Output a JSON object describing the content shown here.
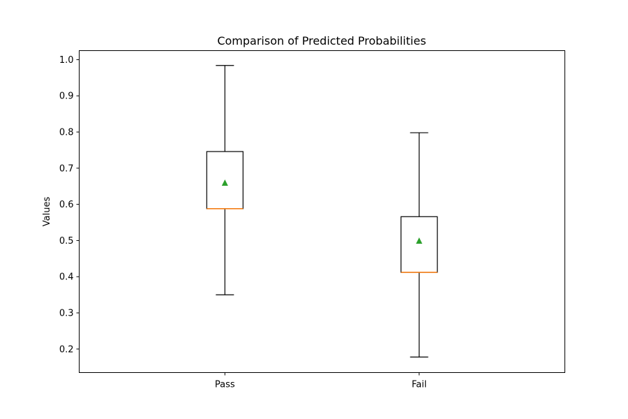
{
  "chart_data": {
    "type": "box",
    "title": "Comparison of Predicted Probabilities",
    "xlabel": "",
    "ylabel": "Values",
    "categories": [
      "Pass",
      "Fail"
    ],
    "ylim": [
      0.135,
      1.025
    ],
    "yticks": [
      0.2,
      0.3,
      0.4,
      0.5,
      0.6,
      0.7,
      0.8,
      0.9,
      1.0
    ],
    "ytick_labels": [
      "0.2",
      "0.3",
      "0.4",
      "0.5",
      "0.6",
      "0.7",
      "0.8",
      "0.9",
      "1.0"
    ],
    "boxes": [
      {
        "category": "Pass",
        "whisker_low": 0.35,
        "q1": 0.588,
        "median": 0.588,
        "q3": 0.746,
        "whisker_high": 0.984,
        "mean": 0.66
      },
      {
        "category": "Fail",
        "whisker_low": 0.178,
        "q1": 0.412,
        "median": 0.412,
        "q3": 0.566,
        "whisker_high": 0.798,
        "mean": 0.5
      }
    ],
    "grid": false,
    "legend": false,
    "colors": {
      "box": "#000000",
      "median": "#ff7f0e",
      "mean": "#2ca02c"
    }
  }
}
